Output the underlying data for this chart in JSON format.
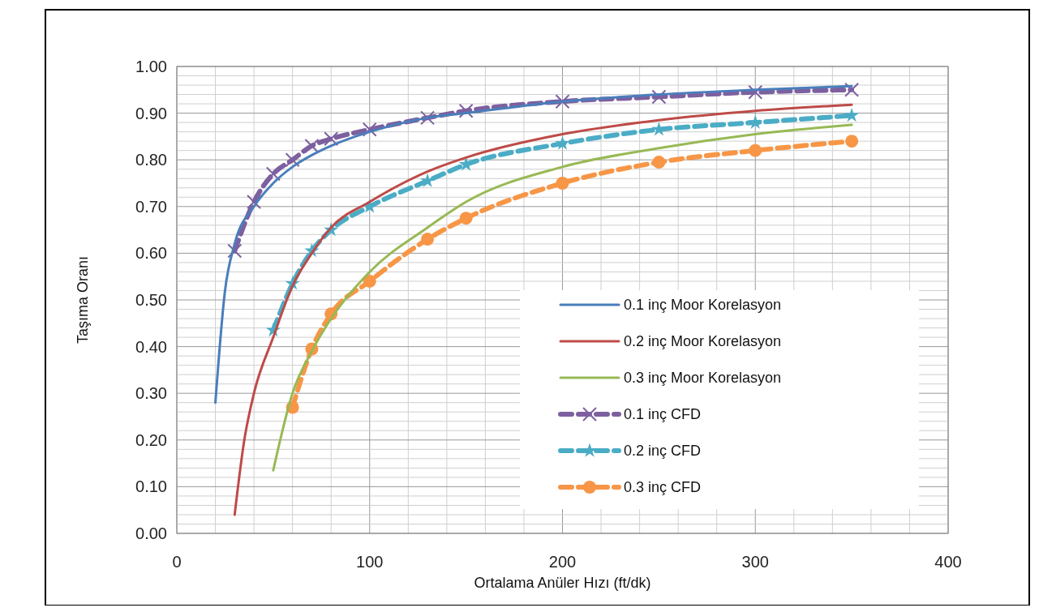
{
  "chart_data": {
    "type": "line",
    "xlabel": "Ortalama Anüler Hızı (ft/dk)",
    "ylabel": "Taşıma Oranı",
    "xlim": [
      0,
      400
    ],
    "xticks": [
      0,
      {
        "value": 20,
        "label": null
      },
      {
        "value": 40,
        "label": null
      },
      {
        "value": 60,
        "label": null
      },
      {
        "value": 80,
        "label": null
      },
      100,
      {
        "value": 120,
        "label": null
      },
      {
        "value": 140,
        "label": null
      },
      {
        "value": 160,
        "label": null
      },
      {
        "value": 180,
        "label": null
      },
      200,
      {
        "value": 220,
        "label": null
      },
      {
        "value": 240,
        "label": null
      },
      {
        "value": 260,
        "label": null
      },
      {
        "value": 280,
        "label": null
      },
      300,
      {
        "value": 320,
        "label": null
      },
      {
        "value": 340,
        "label": null
      },
      {
        "value": 360,
        "label": null
      },
      {
        "value": 380,
        "label": null
      },
      400
    ],
    "ylim": [
      0,
      1
    ],
    "yticks": [
      {
        "value": 0,
        "label": "0.00"
      },
      {
        "value": 0.02,
        "label": null
      },
      {
        "value": 0.04,
        "label": null
      },
      {
        "value": 0.06,
        "label": null
      },
      {
        "value": 0.08,
        "label": null
      },
      {
        "value": 0.1,
        "label": "0.10"
      },
      {
        "value": 0.12,
        "label": null
      },
      {
        "value": 0.14,
        "label": null
      },
      {
        "value": 0.16,
        "label": null
      },
      {
        "value": 0.18,
        "label": null
      },
      {
        "value": 0.2,
        "label": "0.20"
      },
      {
        "value": 0.22,
        "label": null
      },
      {
        "value": 0.24,
        "label": null
      },
      {
        "value": 0.26,
        "label": null
      },
      {
        "value": 0.28,
        "label": null
      },
      {
        "value": 0.3,
        "label": "0.30"
      },
      {
        "value": 0.32,
        "label": null
      },
      {
        "value": 0.34,
        "label": null
      },
      {
        "value": 0.36,
        "label": null
      },
      {
        "value": 0.38,
        "label": null
      },
      {
        "value": 0.4,
        "label": "0.40"
      },
      {
        "value": 0.42,
        "label": null
      },
      {
        "value": 0.44,
        "label": null
      },
      {
        "value": 0.46,
        "label": null
      },
      {
        "value": 0.48,
        "label": null
      },
      {
        "value": 0.5,
        "label": "0.50"
      },
      {
        "value": 0.52,
        "label": null
      },
      {
        "value": 0.54,
        "label": null
      },
      {
        "value": 0.56,
        "label": null
      },
      {
        "value": 0.58,
        "label": null
      },
      {
        "value": 0.6,
        "label": "0.60"
      },
      {
        "value": 0.62,
        "label": null
      },
      {
        "value": 0.64,
        "label": null
      },
      {
        "value": 0.66,
        "label": null
      },
      {
        "value": 0.68,
        "label": null
      },
      {
        "value": 0.7,
        "label": "0.70"
      },
      {
        "value": 0.72,
        "label": null
      },
      {
        "value": 0.74,
        "label": null
      },
      {
        "value": 0.76,
        "label": null
      },
      {
        "value": 0.78,
        "label": null
      },
      {
        "value": 0.8,
        "label": "0.80"
      },
      {
        "value": 0.82,
        "label": null
      },
      {
        "value": 0.84,
        "label": null
      },
      {
        "value": 0.86,
        "label": null
      },
      {
        "value": 0.88,
        "label": null
      },
      {
        "value": 0.9,
        "label": "0.90"
      },
      {
        "value": 0.92,
        "label": null
      },
      {
        "value": 0.94,
        "label": null
      },
      {
        "value": 0.96,
        "label": null
      },
      {
        "value": 0.98,
        "label": null
      },
      {
        "value": 1,
        "label": "1.00"
      }
    ],
    "grid": true,
    "legend": "right",
    "series": [
      {
        "name": "0.1 inç Moor Korelasyon",
        "color": "#4a7ebb",
        "marker": "none",
        "line_style": "solid",
        "x": [
          20,
          25,
          30,
          40,
          50,
          60,
          70,
          80,
          100,
          130,
          150,
          200,
          250,
          300,
          350
        ],
        "values": [
          0.28,
          0.52,
          0.62,
          0.7,
          0.75,
          0.785,
          0.81,
          0.83,
          0.86,
          0.89,
          0.9,
          0.925,
          0.94,
          0.95,
          0.958
        ]
      },
      {
        "name": "0.2 inç Moor Korelasyon",
        "color": "#be4b48",
        "marker": "none",
        "line_style": "solid",
        "x": [
          30,
          35,
          40,
          50,
          60,
          70,
          80,
          100,
          130,
          150,
          200,
          250,
          300,
          350
        ],
        "values": [
          0.04,
          0.2,
          0.3,
          0.42,
          0.53,
          0.6,
          0.655,
          0.71,
          0.775,
          0.805,
          0.855,
          0.885,
          0.905,
          0.918
        ]
      },
      {
        "name": "0.3 inç Moor Korelasyon",
        "color": "#98b954",
        "marker": "none",
        "line_style": "solid",
        "x": [
          50,
          60,
          70,
          80,
          100,
          130,
          150,
          200,
          250,
          300,
          350
        ],
        "values": [
          0.135,
          0.3,
          0.39,
          0.46,
          0.56,
          0.655,
          0.71,
          0.785,
          0.825,
          0.855,
          0.875
        ]
      },
      {
        "name": "0.1 inç CFD",
        "color": "#7d60a0",
        "marker": "cross",
        "line_style": "dashed",
        "x": [
          30,
          40,
          50,
          60,
          70,
          80,
          100,
          130,
          150,
          200,
          250,
          300,
          350
        ],
        "values": [
          0.605,
          0.71,
          0.77,
          0.8,
          0.83,
          0.845,
          0.865,
          0.89,
          0.905,
          0.925,
          0.935,
          0.945,
          0.95
        ]
      },
      {
        "name": "0.2 inç CFD",
        "color": "#4bacc6",
        "marker": "star",
        "line_style": "dashed",
        "x": [
          50,
          60,
          70,
          80,
          100,
          130,
          150,
          200,
          250,
          300,
          350
        ],
        "values": [
          0.435,
          0.535,
          0.605,
          0.65,
          0.7,
          0.755,
          0.79,
          0.835,
          0.865,
          0.88,
          0.895
        ]
      },
      {
        "name": "0.3 inç CFD",
        "color": "#f79646",
        "marker": "circle",
        "line_style": "dashed",
        "x": [
          60,
          70,
          80,
          100,
          130,
          150,
          200,
          250,
          300,
          350
        ],
        "values": [
          0.27,
          0.395,
          0.47,
          0.54,
          0.63,
          0.675,
          0.75,
          0.795,
          0.82,
          0.84
        ]
      }
    ]
  }
}
